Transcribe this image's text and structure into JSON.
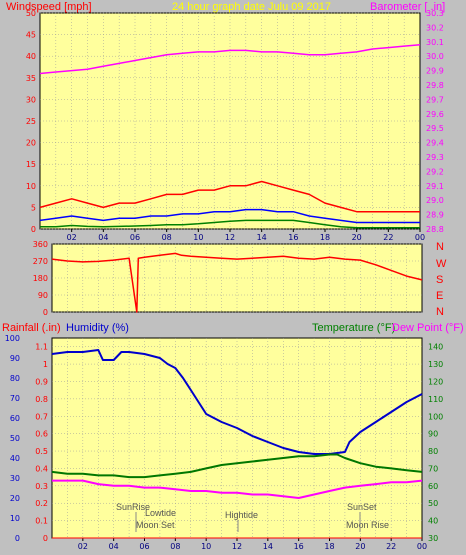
{
  "header": {
    "left": "Windspeed [mph]",
    "center": "24 hour graph date   Julu 09 2017",
    "right": "Barometer [ .in]"
  },
  "colors": {
    "background": "#c0c0c0",
    "plot": "#ffff9d",
    "wind_gust": "#ff0000",
    "wind_avg": "#0000ff",
    "wind_low": "#008000",
    "barometer": "#ff00ff",
    "direction": "#ff0000",
    "humidity": "#0000cc",
    "temperature": "#007700",
    "dewpoint": "#ff00ff",
    "text_red": "#ff0000",
    "text_yellow": "#ffff00",
    "text_blue": "#0000cc",
    "text_green": "#008000",
    "text_magenta": "#ff00ff"
  },
  "x_ticks": [
    "02",
    "04",
    "06",
    "08",
    "10",
    "12",
    "14",
    "16",
    "18",
    "20",
    "22",
    "00"
  ],
  "compass": [
    "N",
    "W",
    "S",
    "E",
    "N"
  ],
  "lower_header": {
    "rainfall": "Rainfall (.in)",
    "humidity": "Humidity (%)",
    "temperature": "Temperature (°F)",
    "dewpoint": "Dew Point (°F)"
  },
  "annotations": {
    "sunrise": "SunRise",
    "lowtide": "Lowtide",
    "moonset": "Moon Set",
    "hightide": "Hightide",
    "sunset": "SunSet",
    "moonrise": "Moon Rise"
  },
  "chart_data": [
    {
      "type": "line",
      "name": "wind_and_barometer",
      "x_unit": "hour",
      "xlim": [
        0,
        24
      ],
      "y_left": {
        "label": "Windspeed [mph]",
        "ylim": [
          0,
          50
        ],
        "ticks": [
          0,
          5,
          10,
          15,
          20,
          25,
          30,
          35,
          40,
          45,
          50
        ]
      },
      "y_right": {
        "label": "Barometer [ .in]",
        "ylim": [
          28.8,
          30.3
        ],
        "ticks": [
          28.8,
          28.9,
          29.0,
          29.1,
          29.2,
          29.3,
          29.4,
          29.5,
          29.6,
          29.7,
          29.8,
          29.9,
          30.0,
          30.1,
          30.2,
          30.3
        ]
      },
      "series": [
        {
          "axis": "right",
          "points": [
            [
              0,
              29.88
            ],
            [
              1,
              29.89
            ],
            [
              2,
              29.9
            ],
            [
              3,
              29.91
            ],
            [
              4,
              29.93
            ],
            [
              5,
              29.95
            ],
            [
              6,
              29.97
            ],
            [
              7,
              29.99
            ],
            [
              8,
              30.01
            ],
            [
              9,
              30.02
            ],
            [
              10,
              30.03
            ],
            [
              11,
              30.03
            ],
            [
              12,
              30.04
            ],
            [
              13,
              30.04
            ],
            [
              14,
              30.03
            ],
            [
              15,
              30.03
            ],
            [
              16,
              30.02
            ],
            [
              17,
              30.01
            ],
            [
              18,
              30.01
            ],
            [
              19,
              30.02
            ],
            [
              20,
              30.03
            ],
            [
              21,
              30.05
            ],
            [
              22,
              30.06
            ],
            [
              23,
              30.07
            ],
            [
              24,
              30.08
            ]
          ]
        },
        {
          "axis": "left",
          "points": [
            [
              0,
              5
            ],
            [
              1,
              6
            ],
            [
              2,
              7
            ],
            [
              3,
              6
            ],
            [
              4,
              5
            ],
            [
              5,
              6
            ],
            [
              6,
              6
            ],
            [
              7,
              7
            ],
            [
              8,
              8
            ],
            [
              9,
              8
            ],
            [
              10,
              9
            ],
            [
              11,
              9
            ],
            [
              12,
              10
            ],
            [
              13,
              10
            ],
            [
              14,
              11
            ],
            [
              15,
              10
            ],
            [
              16,
              9
            ],
            [
              17,
              8
            ],
            [
              18,
              6
            ],
            [
              19,
              5
            ],
            [
              20,
              4
            ],
            [
              21,
              4
            ],
            [
              22,
              4
            ],
            [
              23,
              4
            ],
            [
              24,
              4
            ]
          ]
        },
        {
          "axis": "left",
          "points": [
            [
              0,
              2
            ],
            [
              1,
              2.5
            ],
            [
              2,
              3
            ],
            [
              3,
              2.5
            ],
            [
              4,
              2
            ],
            [
              5,
              2.5
            ],
            [
              6,
              2.5
            ],
            [
              7,
              3
            ],
            [
              8,
              3
            ],
            [
              9,
              3.5
            ],
            [
              10,
              3.5
            ],
            [
              11,
              4
            ],
            [
              12,
              4
            ],
            [
              13,
              4.5
            ],
            [
              14,
              4.5
            ],
            [
              15,
              4
            ],
            [
              16,
              4
            ],
            [
              17,
              3
            ],
            [
              18,
              2.5
            ],
            [
              19,
              2
            ],
            [
              20,
              1.5
            ],
            [
              21,
              1.5
            ],
            [
              22,
              1.5
            ],
            [
              23,
              1.5
            ],
            [
              24,
              1.5
            ]
          ]
        },
        {
          "axis": "left",
          "points": [
            [
              0,
              0.5
            ],
            [
              1,
              0.5
            ],
            [
              2,
              0.8
            ],
            [
              3,
              0.6
            ],
            [
              4,
              0.5
            ],
            [
              5,
              0.6
            ],
            [
              6,
              0.7
            ],
            [
              7,
              0.8
            ],
            [
              8,
              1
            ],
            [
              9,
              1
            ],
            [
              10,
              1.2
            ],
            [
              11,
              1.5
            ],
            [
              12,
              1.8
            ],
            [
              13,
              2
            ],
            [
              14,
              2
            ],
            [
              15,
              2
            ],
            [
              16,
              2
            ],
            [
              17,
              1.5
            ],
            [
              18,
              1
            ],
            [
              19,
              0.5
            ],
            [
              20,
              0.3
            ],
            [
              21,
              0.3
            ],
            [
              22,
              0.3
            ],
            [
              23,
              0.3
            ],
            [
              24,
              0.3
            ]
          ]
        }
      ]
    },
    {
      "type": "line",
      "name": "wind_direction",
      "x_unit": "hour",
      "xlim": [
        0,
        24
      ],
      "ylim": [
        0,
        360
      ],
      "y_ticks": [
        0,
        90,
        180,
        270,
        360
      ],
      "series": [
        {
          "points": [
            [
              0,
              280
            ],
            [
              1,
              270
            ],
            [
              2,
              265
            ],
            [
              3,
              268
            ],
            [
              4,
              275
            ],
            [
              5,
              285
            ],
            [
              5.5,
              0
            ],
            [
              5.6,
              285
            ],
            [
              6,
              290
            ],
            [
              7,
              300
            ],
            [
              8,
              310
            ],
            [
              8.4,
              300
            ],
            [
              9,
              295
            ],
            [
              10,
              290
            ],
            [
              11,
              285
            ],
            [
              12,
              280
            ],
            [
              13,
              285
            ],
            [
              14,
              290
            ],
            [
              15,
              295
            ],
            [
              16,
              285
            ],
            [
              17,
              280
            ],
            [
              18,
              290
            ],
            [
              19,
              280
            ],
            [
              20,
              275
            ],
            [
              21,
              250
            ],
            [
              22,
              220
            ],
            [
              23,
              190
            ],
            [
              24,
              170
            ]
          ]
        }
      ]
    },
    {
      "type": "line",
      "name": "rain_humidity_temperature",
      "x_unit": "hour",
      "xlim": [
        0,
        24
      ],
      "y_left": {
        "label": "Rainfall (.in)",
        "ylim": [
          0,
          1.15
        ],
        "ticks": [
          0,
          0.1,
          0.2,
          0.3,
          0.4,
          0.5,
          0.6,
          0.7,
          0.8,
          0.9,
          1,
          1.1
        ]
      },
      "y_humidity": {
        "label": "Humidity (%)",
        "ylim": [
          0,
          100
        ],
        "ticks": [
          0,
          10,
          20,
          30,
          40,
          50,
          60,
          70,
          80,
          90,
          100
        ]
      },
      "y_right": {
        "label": "Temperature (°F)",
        "ylim": [
          30,
          145
        ],
        "ticks": [
          30,
          40,
          50,
          60,
          70,
          80,
          90,
          100,
          110,
          120,
          130,
          140
        ]
      },
      "series": [
        {
          "label": "Humidity (%)",
          "axis": "humidity",
          "points": [
            [
              0,
              92
            ],
            [
              1,
              93
            ],
            [
              2,
              93
            ],
            [
              3,
              94
            ],
            [
              3.3,
              89
            ],
            [
              4,
              89
            ],
            [
              4.5,
              93
            ],
            [
              5,
              93
            ],
            [
              6,
              92
            ],
            [
              7,
              90
            ],
            [
              7.5,
              87
            ],
            [
              8,
              85
            ],
            [
              8.5,
              80
            ],
            [
              9,
              74
            ],
            [
              9.5,
              68
            ],
            [
              10,
              62
            ],
            [
              11,
              58
            ],
            [
              12,
              55
            ],
            [
              13,
              51
            ],
            [
              14,
              48
            ],
            [
              15,
              45
            ],
            [
              16,
              43
            ],
            [
              17,
              42
            ],
            [
              18,
              42
            ],
            [
              19,
              43
            ],
            [
              19.3,
              48
            ],
            [
              20,
              53
            ],
            [
              21,
              58
            ],
            [
              22,
              63
            ],
            [
              23,
              68
            ],
            [
              24,
              72
            ]
          ]
        },
        {
          "label": "Temperature (°F)",
          "axis": "right",
          "points": [
            [
              0,
              68
            ],
            [
              1,
              67
            ],
            [
              2,
              67
            ],
            [
              3,
              66
            ],
            [
              4,
              66
            ],
            [
              5,
              65
            ],
            [
              6,
              65
            ],
            [
              7,
              66
            ],
            [
              8,
              67
            ],
            [
              9,
              68
            ],
            [
              10,
              70
            ],
            [
              11,
              72
            ],
            [
              12,
              73
            ],
            [
              13,
              74
            ],
            [
              14,
              75
            ],
            [
              15,
              76
            ],
            [
              16,
              77
            ],
            [
              17,
              77
            ],
            [
              18,
              78
            ],
            [
              18.5,
              78
            ],
            [
              19,
              76
            ],
            [
              20,
              73
            ],
            [
              21,
              71
            ],
            [
              22,
              70
            ],
            [
              23,
              69
            ],
            [
              24,
              68
            ]
          ]
        },
        {
          "label": "Dew Point (°F)",
          "axis": "right",
          "points": [
            [
              0,
              63
            ],
            [
              1,
              63
            ],
            [
              2,
              63
            ],
            [
              3,
              61
            ],
            [
              4,
              60
            ],
            [
              5,
              60
            ],
            [
              6,
              59
            ],
            [
              7,
              59
            ],
            [
              8,
              58
            ],
            [
              9,
              57
            ],
            [
              10,
              57
            ],
            [
              11,
              56
            ],
            [
              12,
              56
            ],
            [
              13,
              55
            ],
            [
              14,
              55
            ],
            [
              15,
              54
            ],
            [
              16,
              53
            ],
            [
              17,
              55
            ],
            [
              18,
              57
            ],
            [
              19,
              59
            ],
            [
              20,
              60
            ],
            [
              21,
              61
            ],
            [
              22,
              62
            ],
            [
              23,
              62
            ],
            [
              24,
              63
            ]
          ]
        },
        {
          "label": "Rainfall (.in)",
          "axis": "left",
          "points": [
            [
              0,
              0
            ],
            [
              24,
              0
            ]
          ]
        }
      ]
    }
  ]
}
